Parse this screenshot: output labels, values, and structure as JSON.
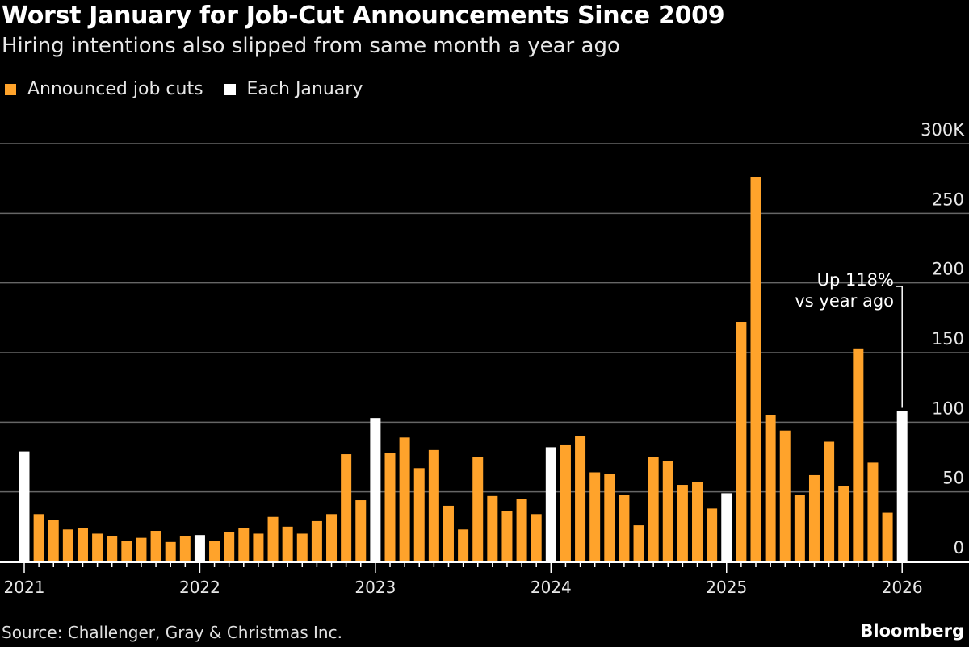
{
  "title": "Worst January for Job-Cut Announcements Since 2009",
  "subtitle": "Hiring intentions also slipped from same month a year ago",
  "source": "Source: Challenger, Gray & Christmas Inc.",
  "brand": "Bloomberg",
  "colors": {
    "cuts": "#FFA32B",
    "january": "#FFFFFF",
    "grid": "#666666"
  },
  "chart_data": {
    "type": "bar",
    "title": "Worst January for Job-Cut Announcements Since 2009",
    "ylabel": "Announced job cuts (thousands)",
    "ylim": [
      0,
      300
    ],
    "yticks": [
      0,
      50,
      100,
      150,
      200,
      250,
      300
    ],
    "ytick_labels": [
      "0",
      "50",
      "100",
      "150",
      "200",
      "250",
      "300K"
    ],
    "xtick_labels": [
      "2021",
      "2022",
      "2023",
      "2024",
      "2025",
      "2026"
    ],
    "legend": [
      "Announced job cuts",
      "Each January"
    ],
    "legend_position": "top-left",
    "grid": true,
    "start": "2021-01",
    "values": [
      79,
      34,
      30,
      23,
      24,
      20,
      18,
      15,
      17,
      22,
      14,
      18,
      19,
      15,
      21,
      24,
      20,
      32,
      25,
      20,
      29,
      34,
      77,
      44,
      103,
      78,
      89,
      67,
      80,
      40,
      23,
      75,
      47,
      36,
      45,
      34,
      82,
      84,
      90,
      64,
      63,
      48,
      26,
      75,
      72,
      55,
      57,
      38,
      49,
      172,
      276,
      105,
      94,
      48,
      62,
      86,
      54,
      153,
      71,
      35,
      108
    ],
    "annotation": {
      "line1": "Up 118%",
      "line2": "vs year ago"
    }
  }
}
